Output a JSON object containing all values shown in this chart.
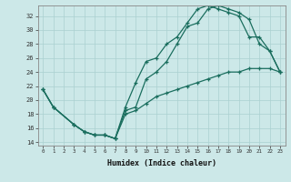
{
  "line1_x": [
    0,
    1,
    3,
    4,
    5,
    6,
    7,
    8,
    9,
    10,
    11,
    12,
    13,
    14,
    15,
    16,
    17,
    18,
    19,
    20,
    21,
    22,
    23
  ],
  "line1_y": [
    21.5,
    19.0,
    16.5,
    15.5,
    15.0,
    15.0,
    14.5,
    19.0,
    22.5,
    25.5,
    26.0,
    28.0,
    29.0,
    31.0,
    33.0,
    33.5,
    33.0,
    32.5,
    32.0,
    29.0,
    29.0,
    27.0,
    24.0
  ],
  "line2_x": [
    0,
    1,
    3,
    4,
    5,
    6,
    7,
    8,
    9,
    10,
    11,
    12,
    13,
    14,
    15,
    16,
    17,
    18,
    19,
    20,
    21,
    22,
    23
  ],
  "line2_y": [
    21.5,
    19.0,
    16.5,
    15.5,
    15.0,
    15.0,
    14.5,
    18.5,
    19.0,
    23.0,
    24.0,
    25.5,
    28.0,
    30.5,
    31.0,
    33.0,
    33.5,
    33.0,
    32.5,
    31.5,
    28.0,
    27.0,
    24.0
  ],
  "line3_x": [
    0,
    1,
    3,
    4,
    5,
    6,
    7,
    8,
    9,
    10,
    11,
    12,
    13,
    14,
    15,
    16,
    17,
    18,
    19,
    20,
    21,
    22,
    23
  ],
  "line3_y": [
    21.5,
    19.0,
    16.5,
    15.5,
    15.0,
    15.0,
    14.5,
    18.0,
    18.5,
    19.5,
    20.5,
    21.0,
    21.5,
    22.0,
    22.5,
    23.0,
    23.5,
    24.0,
    24.0,
    24.5,
    24.5,
    24.5,
    24.0
  ],
  "line_color": "#1a6e5e",
  "bg_color": "#cce8e8",
  "grid_color": "#aad0d0",
  "xlabel": "Humidex (Indice chaleur)",
  "ylim": [
    13.5,
    33.5
  ],
  "xlim": [
    -0.5,
    23.5
  ],
  "yticks": [
    14,
    16,
    18,
    20,
    22,
    24,
    26,
    28,
    30,
    32
  ],
  "xticks": [
    0,
    1,
    2,
    3,
    4,
    5,
    6,
    7,
    8,
    9,
    10,
    11,
    12,
    13,
    14,
    15,
    16,
    17,
    18,
    19,
    20,
    21,
    22,
    23
  ],
  "xtick_labels": [
    "0",
    "1",
    "2",
    "3",
    "4",
    "5",
    "6",
    "7",
    "8",
    "9",
    "10",
    "11",
    "12",
    "13",
    "14",
    "15",
    "16",
    "17",
    "18",
    "19",
    "20",
    "21",
    "22",
    "23"
  ]
}
